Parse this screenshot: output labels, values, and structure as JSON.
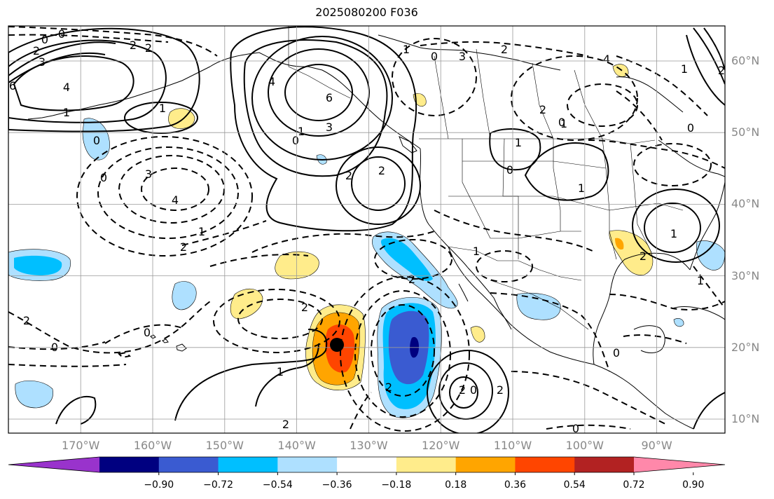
{
  "title": "2025080200 F036",
  "lat_labels": [
    {
      "text": "60°N",
      "value": 60
    },
    {
      "text": "50°N",
      "value": 50
    },
    {
      "text": "40°N",
      "value": 40
    },
    {
      "text": "30°N",
      "value": 30
    },
    {
      "text": "20°N",
      "value": 20
    },
    {
      "text": "10°N",
      "value": 10
    }
  ],
  "lon_labels": [
    {
      "text": "170°W",
      "value": -170
    },
    {
      "text": "160°W",
      "value": -160
    },
    {
      "text": "150°W",
      "value": -150
    },
    {
      "text": "140°W",
      "value": -140
    },
    {
      "text": "130°W",
      "value": -130
    },
    {
      "text": "120°W",
      "value": -120
    },
    {
      "text": "110°W",
      "value": -110
    },
    {
      "text": "100°W",
      "value": -100
    },
    {
      "text": "90°W",
      "value": -90
    }
  ],
  "colorbar": {
    "colors": [
      "#9933cc",
      "#000080",
      "#3a5bd1",
      "#00bfff",
      "#aee0ff",
      "#ffffff",
      "#ffec8b",
      "#ffa500",
      "#ff4500",
      "#b22222",
      "#ff88aa"
    ],
    "ticks": [
      "−0.90",
      "−0.72",
      "−0.54",
      "−0.36",
      "−0.18",
      "0.18",
      "0.36",
      "0.54",
      "0.72",
      "0.90"
    ]
  },
  "contour_labels": [
    "0",
    "0",
    "2",
    "2",
    "3",
    "4",
    "6",
    "2",
    "1",
    "1",
    "0",
    "3",
    "4",
    "6",
    "3",
    "1",
    "0",
    "2",
    "2",
    "1",
    "2",
    "0",
    "4",
    "1",
    "1",
    "0",
    "2",
    "1",
    "3",
    "4",
    "2",
    "1",
    "0",
    "2",
    "0",
    "2",
    "2",
    "1",
    "0",
    "1",
    "2",
    "2",
    "0",
    "2",
    "2",
    "2",
    "1",
    "0",
    "1",
    "2",
    "0",
    "0",
    "0",
    "1"
  ],
  "storm_marker_color": "#000000"
}
